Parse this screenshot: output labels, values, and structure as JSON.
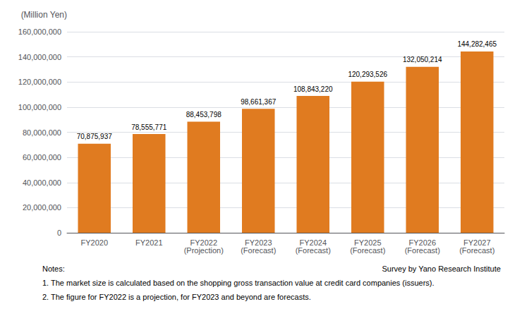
{
  "chart_data": {
    "type": "bar",
    "ylabel": "(Million Yen)",
    "categories": [
      "FY2020",
      "FY2021",
      "FY2022\n(Projection)",
      "FY2023\n(Forecast)",
      "FY2024\n(Forecast)",
      "FY2025\n(Forecast)",
      "FY2026\n(Forecast)",
      "FY2027\n(Forecast)"
    ],
    "values": [
      70875937,
      78555771,
      88453798,
      98661367,
      108843220,
      120293526,
      132050214,
      144282465
    ],
    "value_labels": [
      "70,875,937",
      "78,555,771",
      "88,453,798",
      "98,661,367",
      "108,843,220",
      "120,293,526",
      "132,050,214",
      "144,282,465"
    ],
    "data_labels": true,
    "color": "#E07B20",
    "ylim": [
      0,
      160000000
    ],
    "yticks": [
      0,
      {
        "value": 20000000,
        "label": "20,000,000"
      },
      {
        "value": 40000000,
        "label": "40,000,000"
      },
      {
        "value": 60000000,
        "label": "60,000,000"
      },
      {
        "value": 80000000,
        "label": "80,000,000"
      },
      {
        "value": 100000000,
        "label": "100,000,000"
      },
      {
        "value": 120000000,
        "label": "120,000,000"
      },
      {
        "value": 140000000,
        "label": "140,000,000"
      },
      {
        "value": 160000000,
        "label": "160,000,000"
      }
    ],
    "grid": true,
    "notes_label": "Notes:",
    "source": "Survey by Yano Research Institute",
    "notes": [
      "1. The market size is calculated based on the shopping gross transaction value at credit card companies (issuers).",
      "2. The figure for FY2022 is a projection, for FY2023 and beyond are forecasts."
    ]
  }
}
